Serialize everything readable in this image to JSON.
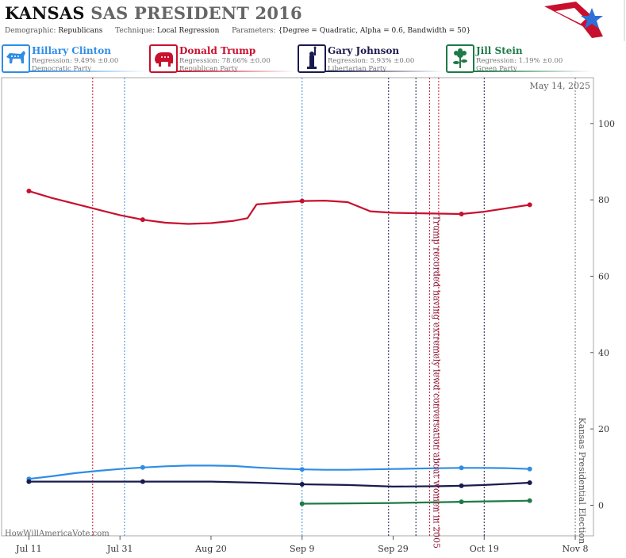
{
  "header": {
    "state": "KANSAS",
    "race": "SAS PRESIDENT 2016",
    "demographic_label": "Demographic:",
    "demographic": "Republicans",
    "technique_label": "Technique:",
    "technique": "Local Regression",
    "parameters_label": "Parameters:",
    "parameters": "{Degree = Quadratic, Alpha = 0.6, Bandwidth = 50}"
  },
  "candidates": [
    {
      "name": "Hillary Clinton",
      "regression": "Regression: 9.49% ±0.00",
      "party": "Democratic Party",
      "color": "#2f8de4",
      "icon": "donkey-icon"
    },
    {
      "name": "Donald Trump",
      "regression": "Regression: 78.66% ±0.00",
      "party": "Republican Party",
      "color": "#c8102e",
      "icon": "elephant-icon"
    },
    {
      "name": "Gary Johnson",
      "regression": "Regression: 5.93% ±0.00",
      "party": "Libertarian Party",
      "color": "#1a1a4e",
      "icon": "statue-of-liberty-icon"
    },
    {
      "name": "Jill Stein",
      "regression": "Regression: 1.19% ±0.00",
      "party": "Green Party",
      "color": "#1e7a46",
      "icon": "flower-icon"
    }
  ],
  "footer": "HowWillAmericaVote.com",
  "chart_data": {
    "type": "line",
    "date_label": "May 14, 2025",
    "x_ticks": [
      "Jul 11",
      "Jul 31",
      "Aug 20",
      "Sep 9",
      "Sep 29",
      "Oct 19",
      "Nov 8"
    ],
    "y_ticks": [
      0,
      20,
      40,
      60,
      80,
      100
    ],
    "ylim": [
      -8,
      112
    ],
    "xlim": [
      "2016-07-05",
      "2016-11-12"
    ],
    "grid": false,
    "series": [
      {
        "name": "Donald Trump",
        "color": "#c8102e",
        "points": [
          [
            "2016-07-11",
            82.3
          ],
          [
            "2016-07-16",
            80.5
          ],
          [
            "2016-07-21",
            79.0
          ],
          [
            "2016-07-26",
            77.5
          ],
          [
            "2016-07-31",
            76.0
          ],
          [
            "2016-08-05",
            74.8
          ],
          [
            "2016-08-10",
            74.0
          ],
          [
            "2016-08-15",
            73.7
          ],
          [
            "2016-08-20",
            73.9
          ],
          [
            "2016-08-25",
            74.5
          ],
          [
            "2016-08-28",
            75.2
          ],
          [
            "2016-08-30",
            78.8
          ],
          [
            "2016-09-04",
            79.3
          ],
          [
            "2016-09-09",
            79.7
          ],
          [
            "2016-09-14",
            79.8
          ],
          [
            "2016-09-19",
            79.4
          ],
          [
            "2016-09-24",
            77.0
          ],
          [
            "2016-09-29",
            76.6
          ],
          [
            "2016-10-04",
            76.5
          ],
          [
            "2016-10-09",
            76.4
          ],
          [
            "2016-10-14",
            76.3
          ],
          [
            "2016-10-19",
            76.9
          ],
          [
            "2016-10-24",
            77.8
          ],
          [
            "2016-10-29",
            78.7
          ]
        ],
        "markers": [
          "2016-07-11",
          "2016-08-05",
          "2016-09-09",
          "2016-10-14",
          "2016-10-29"
        ]
      },
      {
        "name": "Hillary Clinton",
        "color": "#2f8de4",
        "points": [
          [
            "2016-07-11",
            6.9
          ],
          [
            "2016-07-16",
            7.6
          ],
          [
            "2016-07-21",
            8.4
          ],
          [
            "2016-07-26",
            9.0
          ],
          [
            "2016-07-31",
            9.5
          ],
          [
            "2016-08-05",
            9.9
          ],
          [
            "2016-08-10",
            10.2
          ],
          [
            "2016-08-15",
            10.4
          ],
          [
            "2016-08-20",
            10.4
          ],
          [
            "2016-08-25",
            10.3
          ],
          [
            "2016-08-30",
            9.9
          ],
          [
            "2016-09-04",
            9.6
          ],
          [
            "2016-09-09",
            9.4
          ],
          [
            "2016-09-14",
            9.3
          ],
          [
            "2016-09-19",
            9.3
          ],
          [
            "2016-09-24",
            9.4
          ],
          [
            "2016-09-29",
            9.5
          ],
          [
            "2016-10-04",
            9.6
          ],
          [
            "2016-10-09",
            9.7
          ],
          [
            "2016-10-14",
            9.8
          ],
          [
            "2016-10-19",
            9.8
          ],
          [
            "2016-10-24",
            9.7
          ],
          [
            "2016-10-29",
            9.5
          ]
        ],
        "markers": [
          "2016-07-11",
          "2016-08-05",
          "2016-09-09",
          "2016-10-14",
          "2016-10-29"
        ]
      },
      {
        "name": "Gary Johnson",
        "color": "#1a1a4e",
        "points": [
          [
            "2016-07-11",
            6.2
          ],
          [
            "2016-07-21",
            6.2
          ],
          [
            "2016-07-31",
            6.2
          ],
          [
            "2016-08-10",
            6.2
          ],
          [
            "2016-08-20",
            6.2
          ],
          [
            "2016-08-30",
            5.9
          ],
          [
            "2016-09-09",
            5.5
          ],
          [
            "2016-09-19",
            5.3
          ],
          [
            "2016-09-29",
            4.9
          ],
          [
            "2016-10-09",
            5.0
          ],
          [
            "2016-10-14",
            5.1
          ],
          [
            "2016-10-19",
            5.3
          ],
          [
            "2016-10-24",
            5.6
          ],
          [
            "2016-10-29",
            5.9
          ]
        ],
        "markers": [
          "2016-07-11",
          "2016-08-05",
          "2016-09-09",
          "2016-10-14",
          "2016-10-29"
        ]
      },
      {
        "name": "Jill Stein",
        "color": "#1e7a46",
        "points": [
          [
            "2016-09-09",
            0.4
          ],
          [
            "2016-09-19",
            0.5
          ],
          [
            "2016-09-29",
            0.6
          ],
          [
            "2016-10-09",
            0.8
          ],
          [
            "2016-10-14",
            0.9
          ],
          [
            "2016-10-19",
            1.0
          ],
          [
            "2016-10-24",
            1.1
          ],
          [
            "2016-10-29",
            1.2
          ]
        ],
        "markers": [
          "2016-09-09",
          "2016-10-14",
          "2016-10-29"
        ]
      }
    ],
    "vlines": [
      {
        "date": "2016-07-25",
        "color": "#c8102e"
      },
      {
        "date": "2016-08-01",
        "color": "#2f8de4"
      },
      {
        "date": "2016-09-09",
        "color": "#2f8de4"
      },
      {
        "date": "2016-09-28",
        "color": "#1a1a4e"
      },
      {
        "date": "2016-10-04",
        "color": "#1a1a4e"
      },
      {
        "date": "2016-10-07",
        "color": "#c8102e"
      },
      {
        "date": "2016-10-09",
        "color": "#c8102e"
      },
      {
        "date": "2016-10-19",
        "color": "#1a1a4e"
      },
      {
        "date": "2016-11-08",
        "color": "#777777"
      }
    ],
    "annotations": [
      {
        "text": "Trump recorded having extremely lewd conversation about women in 2005",
        "date": "2016-10-07",
        "color": "#8b1f3f"
      },
      {
        "text": "Kansas Presidential Election",
        "date": "2016-11-08",
        "color": "#555555"
      }
    ]
  }
}
